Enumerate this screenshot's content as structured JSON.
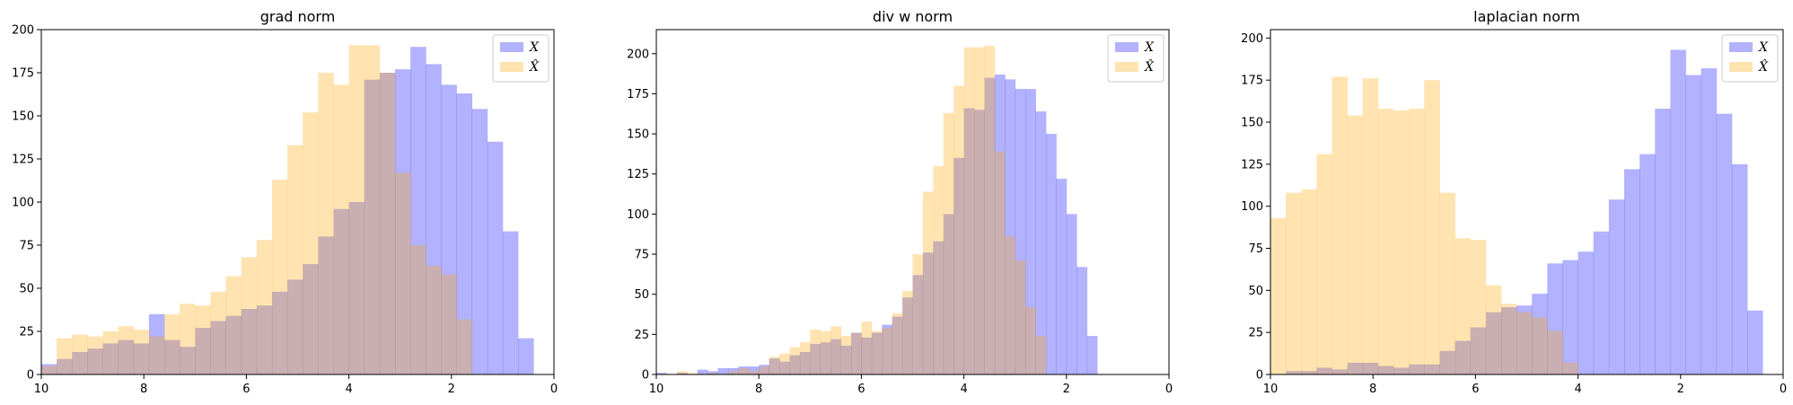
{
  "colors": {
    "X": "#0000ff",
    "Xhat": "#ffa500",
    "bar_alpha": 0.3
  },
  "legend": [
    "X",
    "X̂"
  ],
  "chart_data": [
    {
      "type": "histogram",
      "title": "grad norm",
      "xlim": [
        10,
        0
      ],
      "ylim": [
        0,
        200
      ],
      "xticks": [
        10,
        8,
        6,
        4,
        2,
        0
      ],
      "yticks": [
        0,
        25,
        50,
        75,
        100,
        125,
        150,
        175,
        200
      ],
      "legend_position": "upper right",
      "series": [
        {
          "name": "X",
          "bin_start": 10,
          "bin_width": -0.3,
          "values": [
            6,
            9,
            13,
            15,
            18,
            20,
            18,
            35,
            20,
            16,
            27,
            31,
            34,
            38,
            40,
            48,
            55,
            64,
            80,
            96,
            100,
            171,
            175,
            177,
            190,
            180,
            168,
            163,
            154,
            135,
            83,
            21
          ]
        },
        {
          "name": "X̂",
          "bin_start": 10,
          "bin_width": -0.3,
          "values": [
            5,
            21,
            23,
            22,
            25,
            28,
            26,
            22,
            35,
            41,
            40,
            48,
            57,
            68,
            78,
            113,
            133,
            152,
            175,
            168,
            191,
            191,
            175,
            117,
            75,
            63,
            58,
            32,
            0,
            0,
            0,
            0
          ]
        }
      ]
    },
    {
      "type": "histogram",
      "title": "div w norm",
      "xlim": [
        10,
        0
      ],
      "ylim": [
        0,
        215
      ],
      "xticks": [
        10,
        8,
        6,
        4,
        2,
        0
      ],
      "yticks": [
        0,
        25,
        50,
        75,
        100,
        125,
        150,
        175,
        200
      ],
      "legend_position": "upper right",
      "series": [
        {
          "name": "X",
          "bin_start": 10,
          "bin_width": -0.2,
          "values": [
            1,
            0,
            1,
            0,
            3,
            2,
            4,
            4,
            5,
            5,
            6,
            10,
            8,
            12,
            14,
            19,
            20,
            22,
            18,
            26,
            23,
            26,
            31,
            36,
            48,
            62,
            76,
            83,
            100,
            135,
            166,
            165,
            185,
            187,
            184,
            178,
            178,
            164,
            150,
            122,
            100,
            67,
            24
          ]
        },
        {
          "name": "X̂",
          "bin_start": 10,
          "bin_width": -0.2,
          "values": [
            0,
            0,
            2,
            1,
            0,
            1,
            0,
            2,
            4,
            2,
            5,
            11,
            13,
            17,
            20,
            28,
            27,
            30,
            24,
            26,
            33,
            27,
            29,
            38,
            52,
            75,
            114,
            130,
            163,
            180,
            204,
            204,
            205,
            139,
            86,
            71,
            42,
            24,
            0,
            0,
            0,
            0,
            0
          ]
        }
      ]
    },
    {
      "type": "histogram",
      "title": "laplacian norm",
      "xlim": [
        10,
        0
      ],
      "ylim": [
        0,
        205
      ],
      "xticks": [
        10,
        8,
        6,
        4,
        2,
        0
      ],
      "yticks": [
        0,
        25,
        50,
        75,
        100,
        125,
        150,
        175,
        200
      ],
      "legend_position": "upper right",
      "series": [
        {
          "name": "X",
          "bin_start": 10,
          "bin_width": -0.3,
          "values": [
            0,
            2,
            2,
            4,
            3,
            7,
            7,
            5,
            4,
            6,
            6,
            14,
            20,
            28,
            37,
            40,
            41,
            48,
            66,
            68,
            73,
            85,
            104,
            122,
            131,
            158,
            193,
            178,
            182,
            155,
            125,
            38
          ]
        },
        {
          "name": "X̂",
          "bin_start": 10,
          "bin_width": -0.3,
          "values": [
            93,
            108,
            110,
            131,
            177,
            154,
            176,
            158,
            157,
            158,
            175,
            108,
            81,
            80,
            53,
            42,
            37,
            34,
            26,
            7,
            0,
            0,
            0,
            0,
            0,
            0,
            0,
            0,
            0,
            0,
            0,
            0
          ]
        }
      ]
    }
  ]
}
